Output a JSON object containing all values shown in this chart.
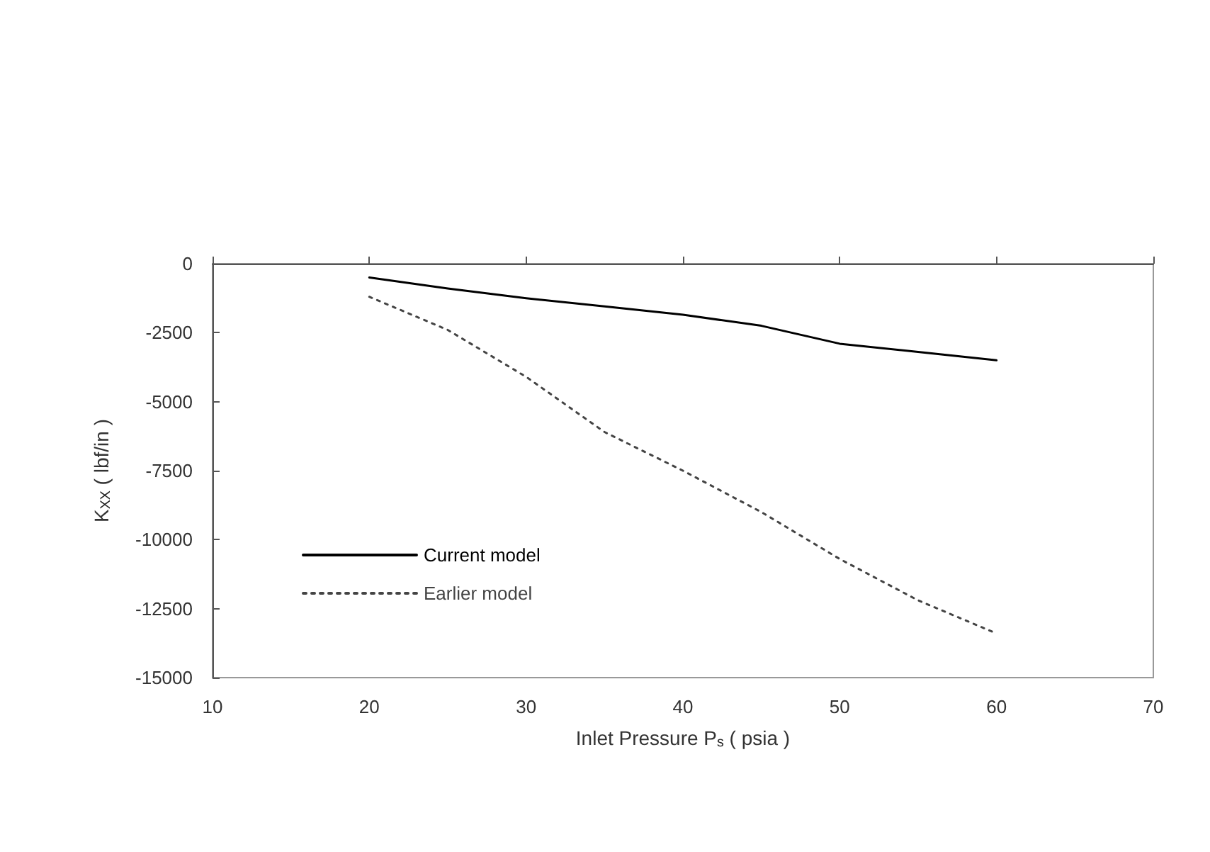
{
  "chart_data": {
    "type": "line",
    "xlabel": "Inlet Pressure P$_{s}$ ( psia )",
    "ylabel": "K$_{XX}$ ( lbf/in )",
    "x": [
      20,
      25,
      30,
      35,
      40,
      45,
      50,
      55,
      60
    ],
    "series": [
      {
        "name": "Current model",
        "color": "#000000",
        "line_style": "solid",
        "values": [
          -500,
          -900,
          -1250,
          -1550,
          -1850,
          -2250,
          -2900,
          -3200,
          -3500
        ]
      },
      {
        "name": "Earlier model",
        "color": "#444444",
        "line_style": "dotted",
        "values": [
          -1200,
          -2400,
          -4100,
          -6100,
          -7500,
          -9000,
          -10700,
          -12200,
          -13400
        ]
      }
    ],
    "xlim": [
      10,
      70
    ],
    "xticks": [
      10,
      20,
      30,
      40,
      50,
      60,
      70
    ],
    "ylim": [
      -15000,
      0
    ],
    "yticks": [
      -15000,
      -12500,
      -10000,
      -7500,
      -5000,
      -2500,
      0
    ],
    "legend": "bottom left",
    "grid": false,
    "marker": "none"
  }
}
